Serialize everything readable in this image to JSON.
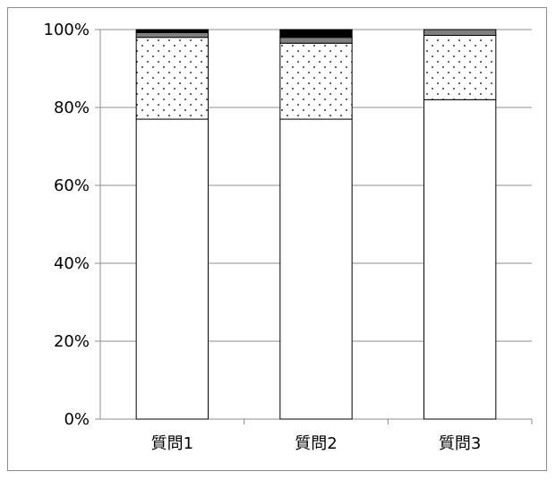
{
  "chart_data": {
    "type": "bar",
    "stacked": true,
    "percent": true,
    "categories": [
      "質問1",
      "質問2",
      "質問3"
    ],
    "ylim": [
      0,
      100
    ],
    "yticks": [
      "0%",
      "20%",
      "40%",
      "60%",
      "80%",
      "100%"
    ],
    "grid": true,
    "legend": "none",
    "series": [
      {
        "values": [
          77,
          77,
          82
        ],
        "fill": "#ffffff",
        "pattern": "none"
      },
      {
        "values": [
          21,
          19.5,
          16.5
        ],
        "fill": "#ffffff",
        "pattern": "dots"
      },
      {
        "values": [
          1.2,
          1.5,
          1.5
        ],
        "fill": "#808080",
        "pattern": "none"
      },
      {
        "values": [
          0.8,
          2.0,
          0
        ],
        "fill": "#000000",
        "pattern": "none"
      }
    ]
  }
}
